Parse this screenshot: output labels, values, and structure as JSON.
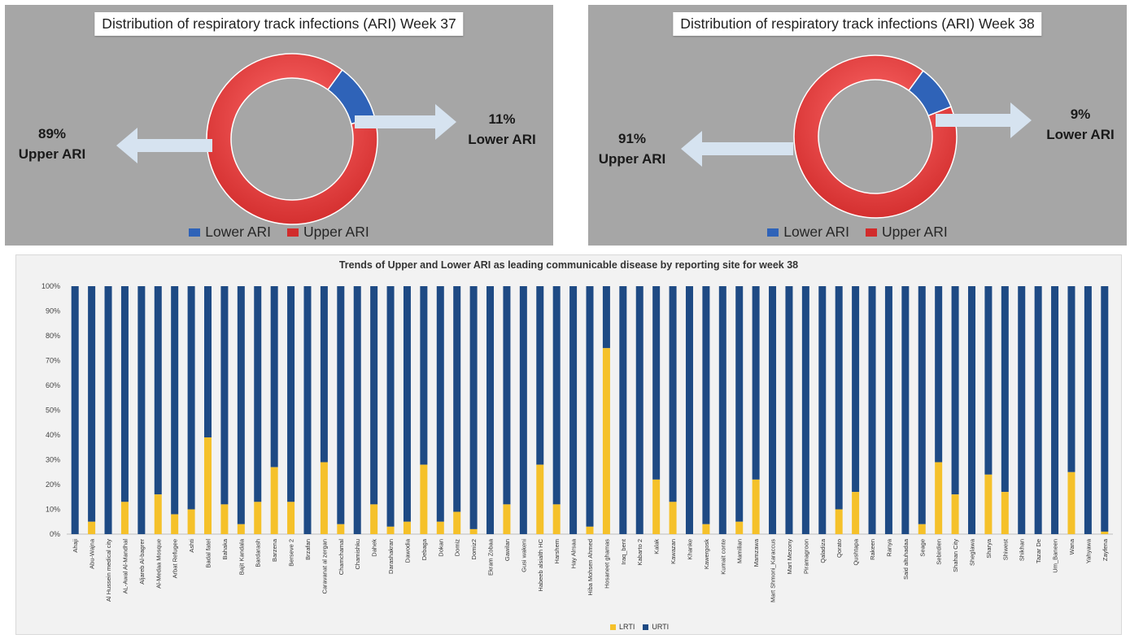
{
  "colors": {
    "upper": "#d12b2b",
    "lower": "#2f63b8",
    "lrti": "#f5c12a",
    "urti": "#1e4a84",
    "arrow": "#d6e3f0",
    "panel_bg": "#a6a6a6"
  },
  "chart_data": [
    {
      "type": "pie",
      "title": "Distribution of respiratory track infections (ARI) Week 37",
      "labels": [
        "Lower ARI",
        "Upper ARI"
      ],
      "values": [
        11,
        89
      ],
      "callouts": {
        "lower": {
          "pct": "11%",
          "label": "Lower ARI"
        },
        "upper": {
          "pct": "89%",
          "label": "Upper ARI"
        }
      },
      "legend": [
        "Lower ARI",
        "Upper ARI"
      ],
      "legend_position": "bottom"
    },
    {
      "type": "pie",
      "title": "Distribution of respiratory track infections (ARI) Week 38",
      "labels": [
        "Lower ARI",
        "Upper ARI"
      ],
      "values": [
        9,
        91
      ],
      "callouts": {
        "lower": {
          "pct": "9%",
          "label": "Lower ARI"
        },
        "upper": {
          "pct": "91%",
          "label": "Upper ARI"
        }
      },
      "legend": [
        "Lower ARI",
        "Upper ARI"
      ],
      "legend_position": "bottom"
    },
    {
      "type": "bar",
      "stacked": "percent",
      "title": "Trends of Upper and Lower ARI as leading communicable disease by reporting site for week 38",
      "ylim": [
        0,
        100
      ],
      "yticks": [
        "0%",
        "10%",
        "20%",
        "30%",
        "40%",
        "50%",
        "60%",
        "70%",
        "80%",
        "90%",
        "100%"
      ],
      "legend": [
        "LRTI",
        "URTI"
      ],
      "legend_position": "bottom",
      "categories": [
        "Ahaji",
        "Abu-Wajna",
        "Al Hussein medical city",
        "AL-Awal Al-Mandhal",
        "Aljareb Al-bagrer",
        "Al-Medaa Mosque",
        "Arbat Refugee",
        "Ashti",
        "Badal fatel",
        "Bahaka",
        "Bajit Kandala",
        "Bardarash",
        "Barzena",
        "Berseve 2",
        "Brzafan",
        "Caravanat al zergan",
        "Chamchamal",
        "Chamishku",
        "Dahek",
        "Darashakran",
        "Dawodia",
        "Debaga",
        "Dokan",
        "Domiz",
        "Domiz2",
        "Ekram Zobaa",
        "Gawilan",
        "Gusi wakeni",
        "Habeeb alsialth HC",
        "Harshem",
        "Hay Alrsaa",
        "Hiba Mohsen Ahmed",
        "Hosaneet ghamas",
        "Iraq_bent",
        "Kabarto 2",
        "Kalak",
        "Kawazan",
        "Khanke",
        "Kawergosk",
        "Kumait conte",
        "Mamilian",
        "Mamzawa",
        "Mart Shmoni_Karaccus",
        "Mart Mezony",
        "Piramagroon",
        "Qaladiza",
        "Qorato",
        "Qushtapa",
        "Rakeen",
        "Ranya",
        "Said altuhadaa",
        "Seage",
        "Sebirdien",
        "Shahan City",
        "Sheglawa",
        "Sharya",
        "Shiwest",
        "Shikhan",
        "Tazar De",
        "Um_Baneen",
        "Wana",
        "Yahyawa",
        "Zayfena"
      ],
      "series": [
        {
          "name": "LRTI",
          "values": [
            0,
            5,
            0,
            13,
            0,
            16,
            8,
            10,
            39,
            12,
            4,
            13,
            27,
            13,
            0,
            29,
            4,
            0,
            12,
            3,
            5,
            28,
            5,
            9,
            2,
            0,
            12,
            0,
            28,
            12,
            0,
            3,
            75,
            0,
            0,
            22,
            13,
            0,
            4,
            0,
            5,
            22,
            0,
            0,
            0,
            0,
            10,
            17,
            0,
            0,
            0,
            4,
            29,
            16,
            0,
            24,
            17,
            0,
            0,
            0,
            25,
            0,
            1
          ]
        },
        {
          "name": "URTI",
          "values": [
            100,
            95,
            100,
            87,
            100,
            84,
            92,
            90,
            61,
            88,
            96,
            87,
            73,
            87,
            100,
            71,
            96,
            100,
            88,
            97,
            95,
            72,
            95,
            91,
            98,
            100,
            88,
            100,
            72,
            88,
            100,
            97,
            25,
            100,
            100,
            78,
            87,
            100,
            96,
            100,
            95,
            78,
            100,
            100,
            100,
            100,
            90,
            83,
            100,
            100,
            100,
            96,
            71,
            84,
            100,
            76,
            83,
            100,
            100,
            100,
            75,
            100,
            99
          ]
        }
      ]
    }
  ]
}
